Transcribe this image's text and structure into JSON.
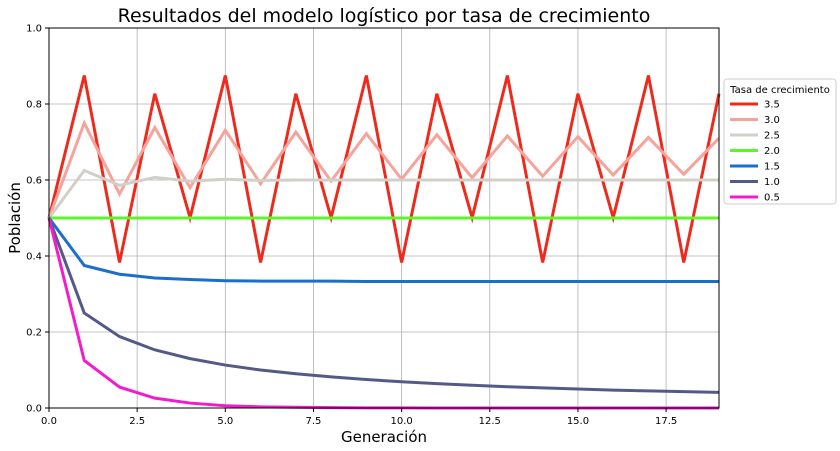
{
  "chart_data": {
    "type": "line",
    "title": "Resultados del modelo logístico por tasa de crecimiento",
    "xlabel": "Generación",
    "ylabel": "Población",
    "xlim": [
      0,
      19
    ],
    "ylim": [
      0,
      1.0
    ],
    "x_ticks": [
      0,
      2.5,
      5,
      7.5,
      10,
      12.5,
      15,
      17.5
    ],
    "x_tick_labels": [
      "0.0",
      "2.5",
      "5.0",
      "7.5",
      "10.0",
      "12.5",
      "15.0",
      "17.5"
    ],
    "y_ticks": [
      0,
      0.2,
      0.4,
      0.6,
      0.8,
      1.0
    ],
    "y_tick_labels": [
      "0.0",
      "0.2",
      "0.4",
      "0.6",
      "0.8",
      "1.0"
    ],
    "grid": true,
    "legend": {
      "title": "Tasa de crecimiento",
      "placement": "outside right"
    },
    "x": [
      0,
      1,
      2,
      3,
      4,
      5,
      6,
      7,
      8,
      9,
      10,
      11,
      12,
      13,
      14,
      15,
      16,
      17,
      18,
      19
    ],
    "series": [
      {
        "name": "3.5",
        "color": "#ee2a1d",
        "values": [
          0.5,
          0.875,
          0.383,
          0.827,
          0.501,
          0.875,
          0.383,
          0.827,
          0.501,
          0.875,
          0.383,
          0.827,
          0.501,
          0.875,
          0.383,
          0.827,
          0.501,
          0.875,
          0.383,
          0.827
        ]
      },
      {
        "name": "3.0",
        "color": "#f5a39b",
        "values": [
          0.5,
          0.75,
          0.563,
          0.738,
          0.58,
          0.731,
          0.59,
          0.726,
          0.597,
          0.722,
          0.602,
          0.719,
          0.606,
          0.716,
          0.61,
          0.714,
          0.613,
          0.712,
          0.615,
          0.71
        ]
      },
      {
        "name": "2.5",
        "color": "#d0d0c8",
        "values": [
          0.5,
          0.625,
          0.586,
          0.607,
          0.597,
          0.602,
          0.599,
          0.6,
          0.6,
          0.6,
          0.6,
          0.6,
          0.6,
          0.6,
          0.6,
          0.6,
          0.6,
          0.6,
          0.6,
          0.6
        ]
      },
      {
        "name": "2.0",
        "color": "#5df52a",
        "values": [
          0.5,
          0.5,
          0.5,
          0.5,
          0.5,
          0.5,
          0.5,
          0.5,
          0.5,
          0.5,
          0.5,
          0.5,
          0.5,
          0.5,
          0.5,
          0.5,
          0.5,
          0.5,
          0.5,
          0.5
        ]
      },
      {
        "name": "1.5",
        "color": "#1a6ed0",
        "values": [
          0.5,
          0.375,
          0.352,
          0.342,
          0.338,
          0.335,
          0.334,
          0.334,
          0.334,
          0.333,
          0.333,
          0.333,
          0.333,
          0.333,
          0.333,
          0.333,
          0.333,
          0.333,
          0.333,
          0.333
        ]
      },
      {
        "name": "1.0",
        "color": "#545a88",
        "values": [
          0.5,
          0.25,
          0.188,
          0.153,
          0.13,
          0.113,
          0.1,
          0.09,
          0.082,
          0.075,
          0.069,
          0.064,
          0.06,
          0.056,
          0.053,
          0.05,
          0.047,
          0.045,
          0.043,
          0.041
        ]
      },
      {
        "name": "0.5",
        "color": "#f21ccd",
        "values": [
          0.5,
          0.125,
          0.055,
          0.026,
          0.013,
          0.006,
          0.003,
          0.002,
          0.001,
          0.0004,
          0.0002,
          0.0001,
          0.0,
          0.0,
          0.0,
          0.0,
          0.0,
          0.0,
          0.0,
          0.0
        ]
      }
    ]
  }
}
